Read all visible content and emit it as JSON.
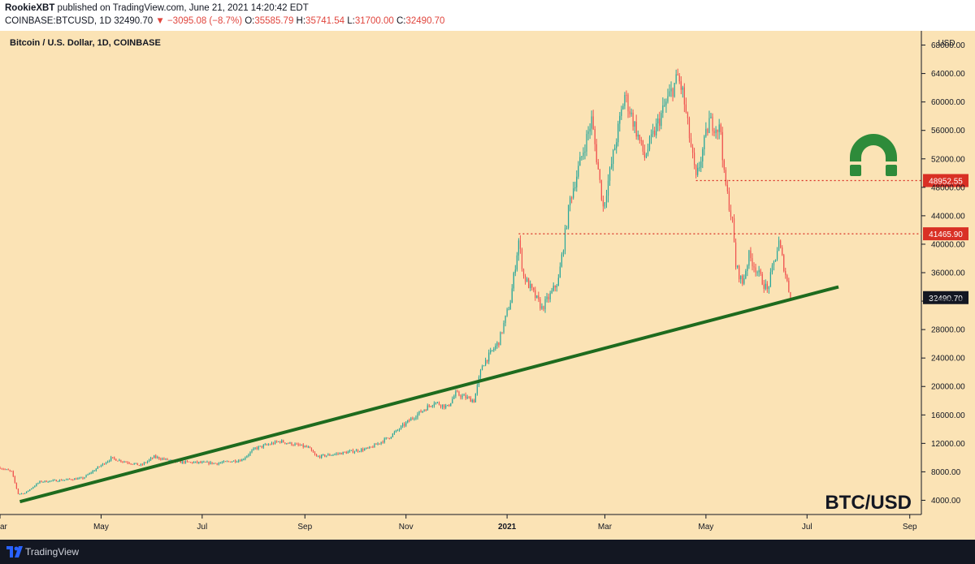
{
  "header": {
    "author": "RookieXBT",
    "published_text": "published on TradingView.com, June 21, 2021 14:20:42 EDT",
    "symbol": "COINBASE:BTCUSD, 1D",
    "last": "32490.70",
    "change": "▼ −3095.08 (−8.7%)",
    "o_label": "O:",
    "o_value": "35585.79",
    "h_label": "H:",
    "h_value": "35741.54",
    "l_label": "L:",
    "l_value": "31700.00",
    "c_label": "C:",
    "c_value": "32490.70"
  },
  "footer": {
    "brand": "TradingView"
  },
  "colors": {
    "background": "#fbe3b5",
    "up": "#26a69a",
    "down": "#ef5350",
    "trendline": "#1e6b1e",
    "level_line": "#d93025",
    "logo_green": "#2e8b3a"
  },
  "chart_data": {
    "type": "candlestick",
    "title": "Bitcoin / U.S. Dollar, 1D, COINBASE",
    "watermark": "BTC/USD",
    "ylabel": "USD",
    "ylim": [
      2000,
      70000
    ],
    "y_ticks": [
      "4000.00",
      "8000.00",
      "12000.00",
      "16000.00",
      "20000.00",
      "24000.00",
      "28000.00",
      "32000.00",
      "36000.00",
      "40000.00",
      "44000.00",
      "48000.00",
      "52000.00",
      "56000.00",
      "60000.00",
      "64000.00",
      "68000.00"
    ],
    "x_ticks": [
      "ar",
      "May",
      "Jul",
      "Sep",
      "Nov",
      "2021",
      "Mar",
      "May",
      "Jul",
      "Sep"
    ],
    "x_tick_dates": [
      "2020-03-01",
      "2020-05-01",
      "2020-07-01",
      "2020-09-01",
      "2020-11-01",
      "2021-01-01",
      "2021-03-01",
      "2021-05-01",
      "2021-07-01",
      "2021-09-01"
    ],
    "xlim": [
      "2020-03-01",
      "2021-09-08"
    ],
    "series_anchors": [
      {
        "date": "2020-03-01",
        "close": 8600
      },
      {
        "date": "2020-03-08",
        "close": 8000
      },
      {
        "date": "2020-03-12",
        "close": 4900
      },
      {
        "date": "2020-03-16",
        "close": 5000
      },
      {
        "date": "2020-03-25",
        "close": 6600
      },
      {
        "date": "2020-04-05",
        "close": 6800
      },
      {
        "date": "2020-04-20",
        "close": 7100
      },
      {
        "date": "2020-05-07",
        "close": 9900
      },
      {
        "date": "2020-05-25",
        "close": 8900
      },
      {
        "date": "2020-06-02",
        "close": 10100
      },
      {
        "date": "2020-06-15",
        "close": 9400
      },
      {
        "date": "2020-07-10",
        "close": 9200
      },
      {
        "date": "2020-07-25",
        "close": 9700
      },
      {
        "date": "2020-08-02",
        "close": 11300
      },
      {
        "date": "2020-08-17",
        "close": 12300
      },
      {
        "date": "2020-09-03",
        "close": 11400
      },
      {
        "date": "2020-09-08",
        "close": 10100
      },
      {
        "date": "2020-09-25",
        "close": 10700
      },
      {
        "date": "2020-10-10",
        "close": 11300
      },
      {
        "date": "2020-10-22",
        "close": 12900
      },
      {
        "date": "2020-11-05",
        "close": 15600
      },
      {
        "date": "2020-11-18",
        "close": 17800
      },
      {
        "date": "2020-11-26",
        "close": 17100
      },
      {
        "date": "2020-12-01",
        "close": 19000
      },
      {
        "date": "2020-12-12",
        "close": 18000
      },
      {
        "date": "2020-12-17",
        "close": 23000
      },
      {
        "date": "2020-12-27",
        "close": 26300
      },
      {
        "date": "2021-01-03",
        "close": 32000
      },
      {
        "date": "2021-01-08",
        "close": 40500
      },
      {
        "date": "2021-01-11",
        "close": 35500
      },
      {
        "date": "2021-01-22",
        "close": 31000
      },
      {
        "date": "2021-01-28",
        "close": 33200
      },
      {
        "date": "2021-02-01",
        "close": 35000
      },
      {
        "date": "2021-02-08",
        "close": 46300
      },
      {
        "date": "2021-02-21",
        "close": 57500
      },
      {
        "date": "2021-02-28",
        "close": 45200
      },
      {
        "date": "2021-03-13",
        "close": 61000
      },
      {
        "date": "2021-03-25",
        "close": 52300
      },
      {
        "date": "2021-04-05",
        "close": 58800
      },
      {
        "date": "2021-04-14",
        "close": 63500
      },
      {
        "date": "2021-04-17",
        "close": 61300
      },
      {
        "date": "2021-04-25",
        "close": 49000
      },
      {
        "date": "2021-05-03",
        "close": 57300
      },
      {
        "date": "2021-05-10",
        "close": 56000
      },
      {
        "date": "2021-05-12",
        "close": 49500
      },
      {
        "date": "2021-05-17",
        "close": 43000
      },
      {
        "date": "2021-05-19",
        "close": 37000
      },
      {
        "date": "2021-05-23",
        "close": 34500
      },
      {
        "date": "2021-05-27",
        "close": 38400
      },
      {
        "date": "2021-06-07",
        "close": 33500
      },
      {
        "date": "2021-06-14",
        "close": 40200
      },
      {
        "date": "2021-06-18",
        "close": 35800
      },
      {
        "date": "2021-06-21",
        "close": 32490.7
      }
    ],
    "levels": [
      {
        "value": 48952.55,
        "label": "48952.55",
        "from_date": "2021-04-25"
      },
      {
        "value": 41465.9,
        "label": "41465.90",
        "from_date": "2021-01-08"
      }
    ],
    "last_price_label": "32490.70",
    "trendline": {
      "start": {
        "date": "2020-03-13",
        "value": 3800
      },
      "end": {
        "date": "2021-07-20",
        "value": 34000
      }
    }
  }
}
